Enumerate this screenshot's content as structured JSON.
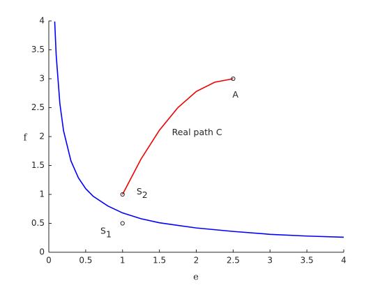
{
  "chart_data": {
    "type": "line",
    "xlabel": "e",
    "ylabel": "f",
    "xlim": [
      0,
      4
    ],
    "ylim": [
      0,
      4
    ],
    "xticks": [
      0,
      0.5,
      1,
      1.5,
      2,
      2.5,
      3,
      3.5,
      4
    ],
    "yticks": [
      0,
      0.5,
      1,
      1.5,
      2,
      2.5,
      3,
      3.5,
      4
    ],
    "series": [
      {
        "color": "#0000ff",
        "x": [
          0.08,
          0.1,
          0.15,
          0.2,
          0.3,
          0.4,
          0.5,
          0.6,
          0.8,
          1,
          1.25,
          1.5,
          2,
          2.5,
          3,
          3.5,
          4
        ],
        "values": [
          3.99,
          3.41,
          2.57,
          2.1,
          1.58,
          1.29,
          1.1,
          0.97,
          0.8,
          0.68,
          0.58,
          0.51,
          0.42,
          0.36,
          0.31,
          0.28,
          0.26
        ]
      },
      {
        "color": "#ee0000",
        "x": [
          1,
          1.25,
          1.5,
          1.75,
          2,
          2.25,
          2.5
        ],
        "values": [
          1,
          1.61,
          2.11,
          2.5,
          2.78,
          2.94,
          3
        ]
      }
    ],
    "points": {
      "x": [
        1,
        1,
        2.5
      ],
      "values": [
        1,
        0.5,
        3
      ]
    },
    "annotations": [
      {
        "text": "S",
        "sub": "2",
        "x": 1.19,
        "y": 1.05,
        "color": "#000000"
      },
      {
        "text": "S",
        "sub": "1",
        "x": 0.7,
        "y": 0.37,
        "color": "#000000"
      },
      {
        "text": "A",
        "x": 2.49,
        "y": 2.72,
        "color": "#000000"
      },
      {
        "text": "Real path C",
        "x": 1.67,
        "y": 2.07,
        "color": "#ee0000"
      }
    ]
  }
}
